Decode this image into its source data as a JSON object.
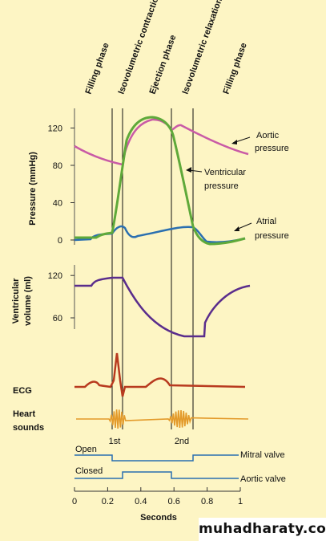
{
  "phases": [
    "Filling phase",
    "Isovolumetric contraction",
    "Ejection phase",
    "Isovolumetric relaxation",
    "Filling phase"
  ],
  "pressure_panel": {
    "ylabel": "Pressure (mmHg)",
    "ticks": [
      "120",
      "80",
      "40",
      "0"
    ],
    "tick_values": [
      120,
      80,
      40,
      0
    ],
    "labels": {
      "aortic": [
        "Aortic",
        "pressure"
      ],
      "ventricular": [
        "Ventricular",
        "pressure"
      ],
      "atrial": [
        "Atrial",
        "pressure"
      ]
    }
  },
  "volume_panel": {
    "ylabel": [
      "Ventricular",
      "volume (ml)"
    ],
    "ticks": [
      "120",
      "60"
    ],
    "tick_values": [
      120,
      60
    ]
  },
  "ecg_label": "ECG",
  "heart_sounds": {
    "label": [
      "Heart",
      "sounds"
    ],
    "first": "1st",
    "second": "2nd"
  },
  "valves": {
    "open": "Open",
    "closed": "Closed",
    "mitral": "Mitral valve",
    "aortic": "Aortic valve"
  },
  "x_axis": {
    "label": "Seconds",
    "ticks": [
      "0",
      "0.2",
      "0.4",
      "0.6",
      "0.8",
      "1"
    ],
    "tick_values": [
      0,
      0.2,
      0.4,
      0.6,
      0.8,
      1
    ]
  },
  "watermark": "muhadharaty.com",
  "colors": {
    "background": "#fdf5c4",
    "aortic": "#c95aa6",
    "ventricular": "#5fa93a",
    "atrial": "#2a6fb0",
    "volume": "#5a2d8c",
    "ecg": "#b83a1f",
    "heart_sounds": "#e39a2a",
    "valve": "#2a6fb0"
  }
}
